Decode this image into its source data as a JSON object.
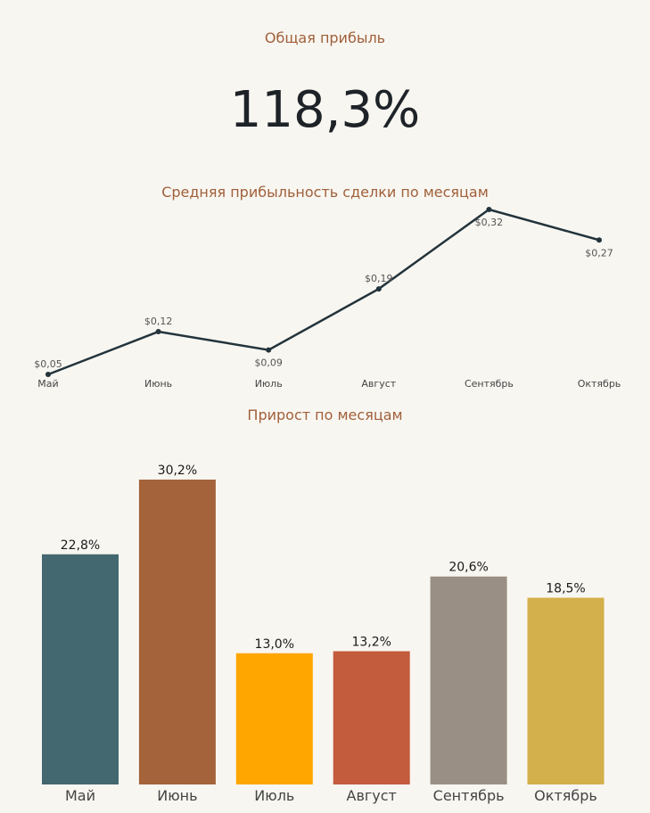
{
  "total": {
    "title": "Общая прибыль",
    "value": "118,3%"
  },
  "chart_data": [
    {
      "type": "line",
      "title": "Средняя прибыльность сделки по месяцам",
      "categories": [
        "Май",
        "Июнь",
        "Июль",
        "Август",
        "Сентябрь",
        "Октябрь"
      ],
      "values": [
        0.05,
        0.12,
        0.09,
        0.19,
        0.32,
        0.27
      ],
      "data_labels": [
        "$0,05",
        "$0,12",
        "$0,09",
        "$0,19",
        "$0,32",
        "$0,27"
      ],
      "ylim": [
        0.05,
        0.32
      ],
      "grid": false,
      "color": "#22333b"
    },
    {
      "type": "bar",
      "title": "Прирост по месяцам",
      "categories": [
        "Май",
        "Июнь",
        "Июль",
        "Август",
        "Сентябрь",
        "Октябрь"
      ],
      "values": [
        22.8,
        30.2,
        13.0,
        13.2,
        20.6,
        18.5
      ],
      "data_labels": [
        "22,8%",
        "30,2%",
        "13,0%",
        "13,2%",
        "20,6%",
        "18,5%"
      ],
      "ylim": [
        0,
        30.2
      ],
      "grid": false,
      "colors": [
        "#43686f",
        "#a4633a",
        "#ffa600",
        "#c35b3d",
        "#9a8f84",
        "#d3b04b"
      ]
    }
  ]
}
